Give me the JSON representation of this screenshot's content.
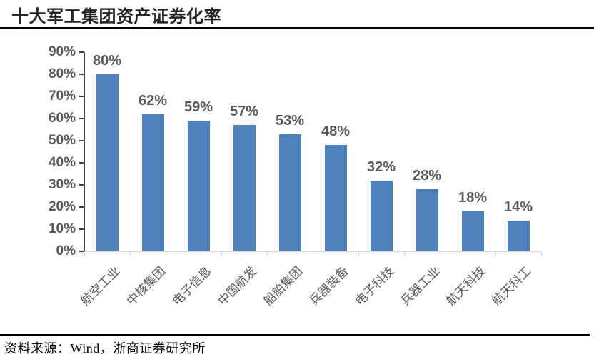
{
  "header": {
    "title": "十大军工集团资产证券化率"
  },
  "chart_data": {
    "type": "bar",
    "title": "十大军工集团资产证券化率",
    "categories": [
      "航空工业",
      "中核集团",
      "电子信息",
      "中国航发",
      "船舶集团",
      "兵器装备",
      "电子科技",
      "兵器工业",
      "航天科技",
      "航天科工"
    ],
    "values": [
      80,
      62,
      59,
      57,
      53,
      48,
      32,
      28,
      18,
      14
    ],
    "value_labels": [
      "80%",
      "62%",
      "59%",
      "57%",
      "53%",
      "48%",
      "32%",
      "28%",
      "18%",
      "14%"
    ],
    "yticks": [
      "0%",
      "10%",
      "20%",
      "30%",
      "40%",
      "50%",
      "60%",
      "70%",
      "80%",
      "90%"
    ],
    "ylim": [
      0,
      90
    ],
    "ytick_interval": 10,
    "grid": false,
    "legend_position": "none",
    "bar_color": "#4E80BC",
    "axis_text_color": "#595959",
    "value_label_color": "#595959"
  },
  "footer": {
    "source": "资料来源：Wind，浙商证券研究所"
  }
}
